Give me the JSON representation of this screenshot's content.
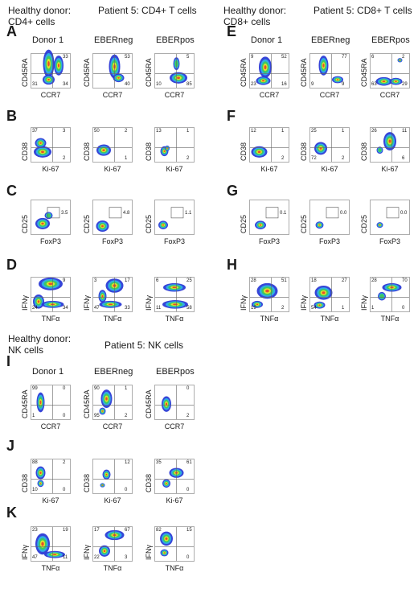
{
  "headers": {
    "a_donor": "Healthy donor:\nCD4+ cells",
    "a_patient": "Patient 5: CD4+ T cells",
    "e_donor": "Healthy donor:\nCD8+ cells",
    "e_patient": "Patient 5: CD8+ T cells",
    "i_donor": "Healthy donor:\nNK cells",
    "i_patient": "Patient 5: NK cells"
  },
  "column_titles": [
    "Donor 1",
    "EBERneg",
    "EBERpos"
  ],
  "panels": [
    {
      "letter": "A",
      "type": "quad",
      "x": "CCR7",
      "y": "CD45RA",
      "titles": true,
      "plots": [
        {
          "q": [
            "",
            "33",
            "31",
            "34"
          ],
          "blobs": [
            [
              0.45,
              0.3,
              0.14,
              0.4,
              1
            ],
            [
              0.7,
              0.35,
              0.12,
              0.28,
              0.8
            ],
            [
              0.45,
              0.75,
              0.15,
              0.14,
              0.9
            ]
          ]
        },
        {
          "q": [
            "",
            "53",
            "",
            "40"
          ],
          "blobs": [
            [
              0.55,
              0.38,
              0.14,
              0.34,
              1
            ],
            [
              0.65,
              0.7,
              0.14,
              0.12,
              0.8
            ]
          ]
        },
        {
          "q": [
            "",
            "5",
            "10",
            "85"
          ],
          "blobs": [
            [
              0.6,
              0.7,
              0.22,
              0.16,
              1
            ],
            [
              0.55,
              0.3,
              0.08,
              0.18,
              0.4
            ]
          ]
        }
      ]
    },
    {
      "letter": "B",
      "type": "quad",
      "x": "Ki-67",
      "y": "CD38",
      "titles": false,
      "plots": [
        {
          "q": [
            "37",
            "3",
            "",
            "2"
          ],
          "blobs": [
            [
              0.3,
              0.7,
              0.22,
              0.16,
              1
            ],
            [
              0.25,
              0.45,
              0.14,
              0.14,
              0.6
            ]
          ]
        },
        {
          "q": [
            "50",
            "2",
            "",
            "1"
          ],
          "blobs": [
            [
              0.28,
              0.65,
              0.18,
              0.16,
              1
            ]
          ]
        },
        {
          "q": [
            "13",
            "1",
            "",
            "2"
          ],
          "blobs": [
            [
              0.25,
              0.68,
              0.1,
              0.14,
              0.9
            ],
            [
              0.32,
              0.6,
              0.06,
              0.08,
              0.6
            ]
          ]
        }
      ]
    },
    {
      "letter": "C",
      "type": "gate",
      "x": "FoxP3",
      "y": "CD25",
      "titles": false,
      "plots": [
        {
          "g": "3.5",
          "blobs": [
            [
              0.3,
              0.68,
              0.18,
              0.16,
              1
            ],
            [
              0.45,
              0.45,
              0.1,
              0.1,
              0.5
            ]
          ]
        },
        {
          "g": "4.8",
          "blobs": [
            [
              0.25,
              0.75,
              0.16,
              0.16,
              1
            ]
          ]
        },
        {
          "g": "1.1",
          "blobs": [
            [
              0.22,
              0.72,
              0.12,
              0.12,
              1
            ]
          ]
        }
      ]
    },
    {
      "letter": "D",
      "type": "quad",
      "x": "TNFα",
      "y": "IFNγ",
      "titles": false,
      "plots": [
        {
          "q": [
            "",
            "9",
            "24",
            "34"
          ],
          "blobs": [
            [
              0.5,
              0.2,
              0.3,
              0.18,
              0.9
            ],
            [
              0.2,
              0.7,
              0.14,
              0.2,
              1
            ],
            [
              0.55,
              0.78,
              0.28,
              0.1,
              1
            ]
          ]
        },
        {
          "q": [
            "3",
            "17",
            "47",
            "33"
          ],
          "blobs": [
            [
              0.55,
              0.25,
              0.22,
              0.2,
              0.8
            ],
            [
              0.45,
              0.78,
              0.28,
              0.1,
              1
            ],
            [
              0.25,
              0.55,
              0.1,
              0.18,
              0.6
            ]
          ]
        },
        {
          "q": [
            "6",
            "25",
            "11",
            "58"
          ],
          "blobs": [
            [
              0.5,
              0.3,
              0.28,
              0.12,
              0.9
            ],
            [
              0.52,
              0.78,
              0.32,
              0.12,
              1
            ]
          ]
        }
      ]
    },
    {
      "letter": "E",
      "type": "quad",
      "x": "CCR7",
      "y": "CD45RA",
      "titles": true,
      "plots": [
        {
          "q": [
            "9",
            "52",
            "23",
            "16"
          ],
          "blobs": [
            [
              0.4,
              0.4,
              0.16,
              0.3,
              1
            ],
            [
              0.35,
              0.78,
              0.18,
              0.12,
              0.8
            ]
          ]
        },
        {
          "q": [
            "",
            "77",
            "9",
            "9"
          ],
          "blobs": [
            [
              0.35,
              0.35,
              0.12,
              0.28,
              1
            ],
            [
              0.7,
              0.75,
              0.14,
              0.1,
              0.8
            ]
          ]
        },
        {
          "q": [
            "6",
            "2",
            "63",
            "29"
          ],
          "blobs": [
            [
              0.35,
              0.8,
              0.2,
              0.12,
              1
            ],
            [
              0.65,
              0.8,
              0.16,
              0.1,
              0.8
            ],
            [
              0.75,
              0.2,
              0.06,
              0.06,
              0.6
            ]
          ]
        }
      ]
    },
    {
      "letter": "F",
      "type": "quad",
      "x": "Ki-67",
      "y": "CD38",
      "titles": false,
      "plots": [
        {
          "q": [
            "12",
            "1",
            "",
            "2"
          ],
          "blobs": [
            [
              0.25,
              0.7,
              0.2,
              0.16,
              1
            ]
          ]
        },
        {
          "q": [
            "25",
            "1",
            "72",
            "2"
          ],
          "blobs": [
            [
              0.28,
              0.6,
              0.16,
              0.18,
              1
            ]
          ]
        },
        {
          "q": [
            "26",
            "11",
            "",
            "6"
          ],
          "blobs": [
            [
              0.5,
              0.4,
              0.16,
              0.26,
              1
            ],
            [
              0.25,
              0.65,
              0.08,
              0.1,
              0.5
            ]
          ]
        }
      ]
    },
    {
      "letter": "G",
      "type": "gate",
      "x": "FoxP3",
      "y": "CD25",
      "titles": false,
      "plots": [
        {
          "g": "0.1",
          "blobs": [
            [
              0.28,
              0.72,
              0.14,
              0.12,
              1
            ]
          ]
        },
        {
          "g": "0.0",
          "blobs": [
            [
              0.25,
              0.72,
              0.1,
              0.1,
              1
            ]
          ]
        },
        {
          "g": "0.0",
          "blobs": [
            [
              0.25,
              0.72,
              0.08,
              0.08,
              0.8
            ]
          ]
        }
      ]
    },
    {
      "letter": "H",
      "type": "quad",
      "x": "TNFα",
      "y": "IFNγ",
      "titles": false,
      "plots": [
        {
          "q": [
            "28",
            "51",
            "19",
            "2"
          ],
          "blobs": [
            [
              0.45,
              0.4,
              0.26,
              0.22,
              1
            ],
            [
              0.2,
              0.78,
              0.14,
              0.1,
              0.9
            ]
          ]
        },
        {
          "q": [
            "18",
            "27",
            "54",
            "1"
          ],
          "blobs": [
            [
              0.35,
              0.45,
              0.22,
              0.2,
              0.9
            ],
            [
              0.25,
              0.8,
              0.14,
              0.1,
              1
            ]
          ]
        },
        {
          "q": [
            "28",
            "70",
            "1",
            "0"
          ],
          "blobs": [
            [
              0.55,
              0.3,
              0.24,
              0.12,
              1
            ],
            [
              0.3,
              0.55,
              0.1,
              0.12,
              0.5
            ]
          ]
        }
      ]
    },
    {
      "letter": "I",
      "type": "quad",
      "x": "CCR7",
      "y": "CD45RA",
      "titles": true,
      "plots": [
        {
          "q": [
            "99",
            "0",
            "1",
            "0"
          ],
          "blobs": [
            [
              0.25,
              0.5,
              0.1,
              0.28,
              1
            ]
          ]
        },
        {
          "q": [
            "90",
            "1",
            "95",
            "2"
          ],
          "blobs": [
            [
              0.35,
              0.4,
              0.14,
              0.26,
              1
            ],
            [
              0.25,
              0.75,
              0.08,
              0.1,
              0.6
            ]
          ]
        },
        {
          "q": [
            "",
            "0",
            "",
            "2"
          ],
          "blobs": [
            [
              0.3,
              0.55,
              0.12,
              0.22,
              1
            ]
          ]
        }
      ]
    },
    {
      "letter": "J",
      "type": "quad",
      "x": "Ki-67",
      "y": "CD38",
      "titles": false,
      "plots": [
        {
          "q": [
            "88",
            "2",
            "10",
            "0"
          ],
          "blobs": [
            [
              0.25,
              0.4,
              0.12,
              0.18,
              1
            ],
            [
              0.25,
              0.7,
              0.08,
              0.1,
              0.6
            ]
          ]
        },
        {
          "q": [
            "",
            "12",
            "",
            "0"
          ],
          "blobs": [
            [
              0.35,
              0.45,
              0.1,
              0.14,
              1
            ],
            [
              0.25,
              0.75,
              0.06,
              0.06,
              0.6
            ]
          ]
        },
        {
          "q": [
            "35",
            "61",
            "",
            "0"
          ],
          "blobs": [
            [
              0.55,
              0.4,
              0.18,
              0.14,
              1
            ],
            [
              0.3,
              0.7,
              0.1,
              0.12,
              0.7
            ]
          ]
        }
      ]
    },
    {
      "letter": "K",
      "type": "quad",
      "x": "TNFα",
      "y": "IFNγ",
      "titles": false,
      "plots": [
        {
          "q": [
            "23",
            "19",
            "47",
            "11"
          ],
          "blobs": [
            [
              0.3,
              0.5,
              0.18,
              0.3,
              1
            ],
            [
              0.6,
              0.8,
              0.26,
              0.1,
              0.8
            ]
          ]
        },
        {
          "q": [
            "17",
            "67",
            "22",
            "3"
          ],
          "blobs": [
            [
              0.55,
              0.25,
              0.24,
              0.14,
              1
            ],
            [
              0.3,
              0.7,
              0.14,
              0.16,
              0.7
            ]
          ]
        },
        {
          "q": [
            "82",
            "15",
            "",
            "0"
          ],
          "blobs": [
            [
              0.3,
              0.35,
              0.16,
              0.2,
              1
            ],
            [
              0.25,
              0.75,
              0.1,
              0.1,
              0.6
            ]
          ]
        }
      ]
    }
  ]
}
